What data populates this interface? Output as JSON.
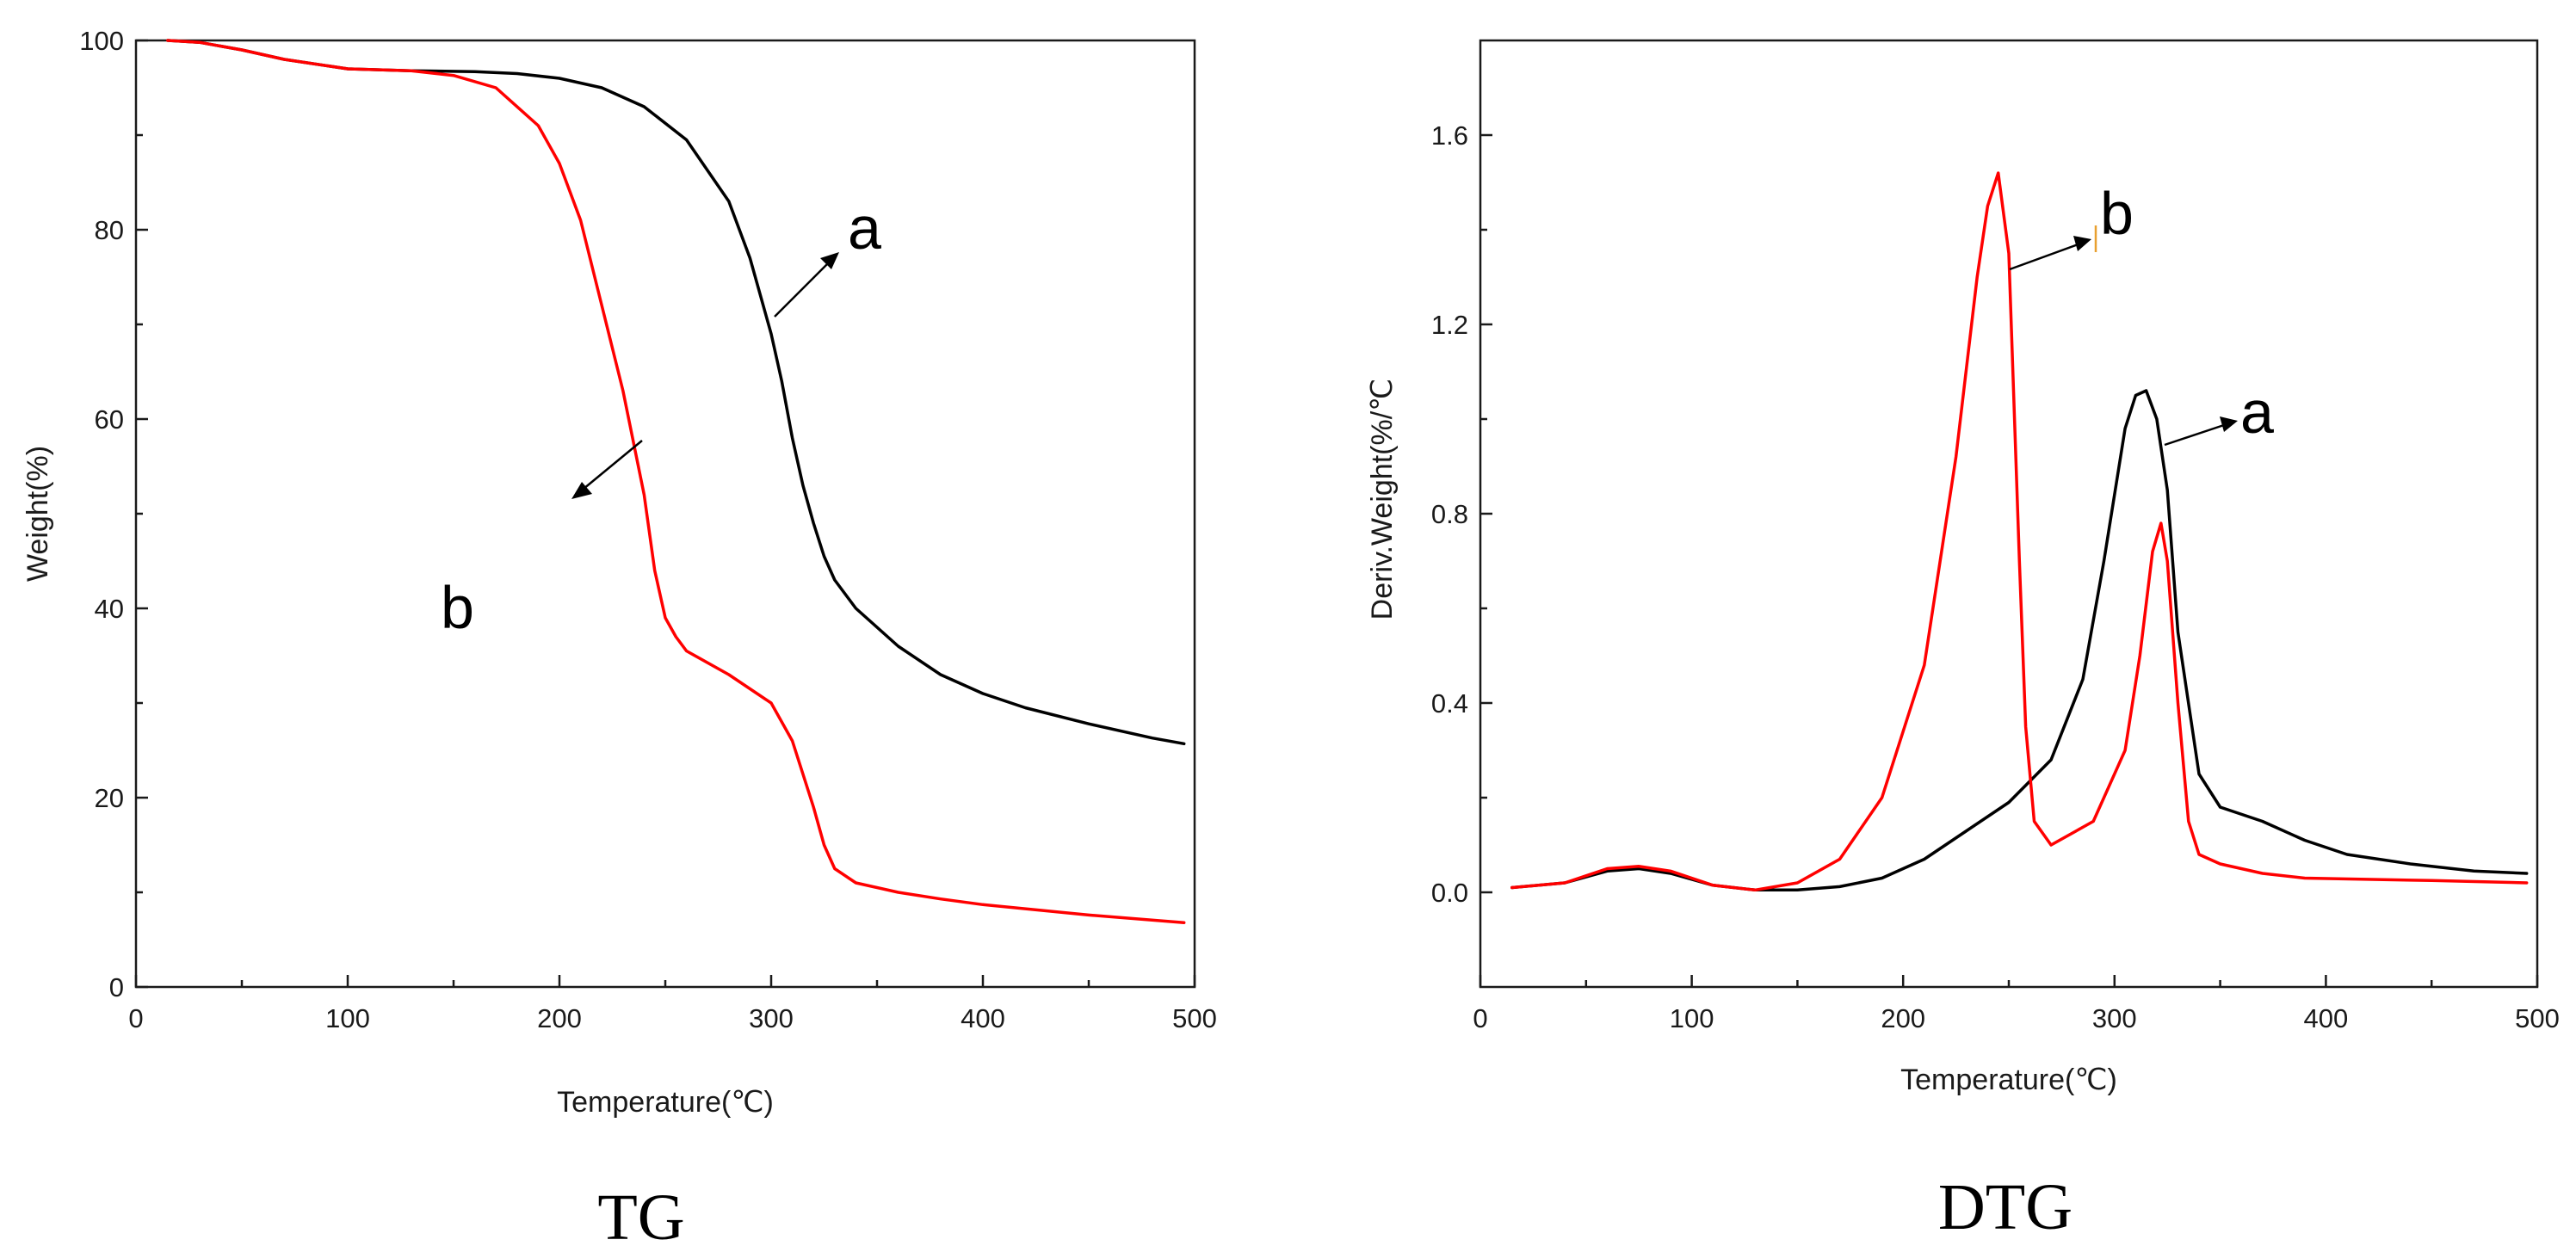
{
  "chart_data": [
    {
      "type": "line",
      "title": "TG",
      "xlabel": "Temperature(℃)",
      "ylabel": "Weight(%)",
      "xlim": [
        0,
        500
      ],
      "ylim": [
        0,
        100
      ],
      "xticks": [
        0,
        100,
        200,
        300,
        400,
        500
      ],
      "yticks": [
        0,
        20,
        40,
        60,
        80,
        100
      ],
      "grid": false,
      "series": [
        {
          "name": "a",
          "color": "#000000",
          "x": [
            15,
            30,
            50,
            70,
            100,
            130,
            160,
            180,
            200,
            220,
            240,
            260,
            280,
            290,
            300,
            305,
            310,
            315,
            320,
            325,
            330,
            340,
            360,
            380,
            400,
            420,
            450,
            480,
            495
          ],
          "y": [
            100,
            99.8,
            99,
            98,
            97,
            96.8,
            96.7,
            96.5,
            96,
            95,
            93,
            89.5,
            83,
            77,
            69,
            64,
            58,
            53,
            49,
            45.5,
            43,
            40,
            36,
            33,
            31,
            29.5,
            27.8,
            26.3,
            25.7
          ]
        },
        {
          "name": "b",
          "color": "#ff0000",
          "x": [
            15,
            30,
            50,
            70,
            100,
            130,
            150,
            170,
            190,
            200,
            210,
            220,
            230,
            240,
            245,
            250,
            255,
            260,
            280,
            300,
            310,
            320,
            325,
            330,
            340,
            360,
            380,
            400,
            450,
            495
          ],
          "y": [
            100,
            99.8,
            99,
            98,
            97,
            96.8,
            96.3,
            95,
            91,
            87,
            81,
            72,
            63,
            52,
            44,
            39,
            37,
            35.5,
            33,
            30,
            26,
            19,
            15,
            12.5,
            11,
            10,
            9.3,
            8.7,
            7.6,
            6.8
          ]
        }
      ],
      "annotations": [
        "a",
        "b"
      ],
      "caption": "TG"
    },
    {
      "type": "line",
      "title": "DTG",
      "xlabel": "Temperature(℃)",
      "ylabel": "Deriv.Weight(%/℃",
      "xlim": [
        0,
        500
      ],
      "ylim": [
        -0.2,
        1.8
      ],
      "xticks": [
        0,
        100,
        200,
        300,
        400,
        500
      ],
      "yticks": [
        0.0,
        0.4,
        0.8,
        1.2,
        1.6
      ],
      "ytick_labels": [
        "0.0",
        "0.4",
        "0.8",
        "1.2",
        "1.6"
      ],
      "grid": false,
      "series": [
        {
          "name": "a",
          "color": "#000000",
          "x": [
            15,
            40,
            60,
            75,
            90,
            110,
            130,
            150,
            170,
            190,
            210,
            230,
            250,
            270,
            285,
            295,
            305,
            310,
            315,
            320,
            325,
            330,
            340,
            350,
            370,
            390,
            410,
            440,
            470,
            495
          ],
          "y": [
            0.01,
            0.02,
            0.045,
            0.05,
            0.04,
            0.015,
            0.005,
            0.005,
            0.012,
            0.03,
            0.07,
            0.13,
            0.19,
            0.28,
            0.45,
            0.7,
            0.98,
            1.05,
            1.06,
            1.0,
            0.85,
            0.55,
            0.25,
            0.18,
            0.15,
            0.11,
            0.08,
            0.06,
            0.045,
            0.04
          ]
        },
        {
          "name": "b",
          "color": "#ff0000",
          "x": [
            15,
            40,
            60,
            75,
            90,
            110,
            130,
            150,
            170,
            190,
            210,
            225,
            235,
            240,
            245,
            250,
            255,
            258,
            262,
            270,
            290,
            305,
            312,
            318,
            322,
            325,
            330,
            335,
            340,
            350,
            370,
            390,
            450,
            495
          ],
          "y": [
            0.01,
            0.02,
            0.05,
            0.055,
            0.045,
            0.015,
            0.005,
            0.02,
            0.07,
            0.2,
            0.48,
            0.92,
            1.3,
            1.45,
            1.52,
            1.35,
            0.7,
            0.35,
            0.15,
            0.1,
            0.15,
            0.3,
            0.5,
            0.72,
            0.78,
            0.7,
            0.4,
            0.15,
            0.08,
            0.06,
            0.04,
            0.03,
            0.025,
            0.02
          ]
        }
      ],
      "annotations": [
        "b",
        "a"
      ],
      "caption": "DTG"
    }
  ]
}
